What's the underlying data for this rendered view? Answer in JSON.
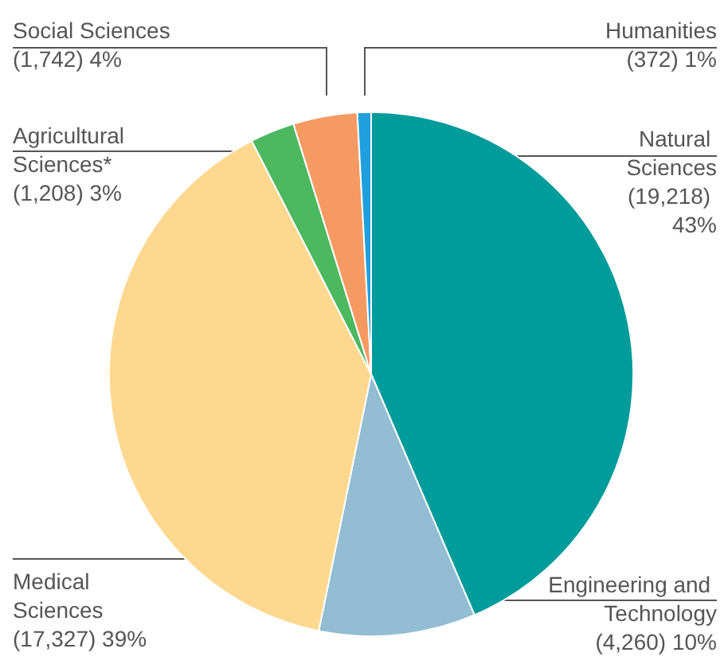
{
  "chart_data": {
    "type": "pie",
    "categories": [
      "Natural Sciences",
      "Engineering and Technology",
      "Medical Sciences",
      "Agricultural Sciences*",
      "Social Sciences",
      "Humanities"
    ],
    "values": [
      19218,
      4260,
      17327,
      1208,
      1742,
      372
    ],
    "value_labels": [
      "(19,218) 43%",
      "(4,260) 10%",
      "(17,327) 39%",
      "(1,208) 3%",
      "(1,742) 4%",
      "(372) 1%"
    ],
    "colors": [
      "#009b9b",
      "#92bdd2",
      "#fdd88e",
      "#4cb860",
      "#f59a62",
      "#1fa0dc"
    ],
    "legend": false
  }
}
